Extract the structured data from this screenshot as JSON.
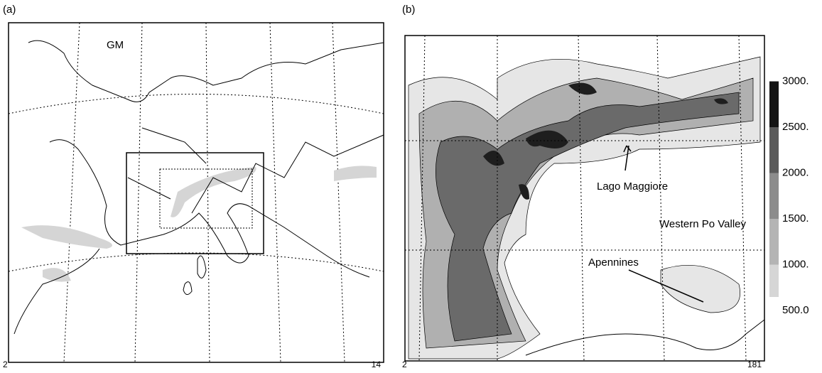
{
  "panels": [
    {
      "label": "(a)",
      "annotation": "GM",
      "x_start": "2",
      "x_end": "14"
    },
    {
      "label": "(b)",
      "x_start": "2",
      "x_end": "181",
      "annotations": [
        "Lago Maggiore",
        "Western Po Valley",
        "Apennines"
      ]
    }
  ],
  "colorbar": {
    "ticks": [
      {
        "value": 3000,
        "label": "3000."
      },
      {
        "value": 2500,
        "label": "2500."
      },
      {
        "value": 2000,
        "label": "2000."
      },
      {
        "value": 1500,
        "label": "1500."
      },
      {
        "value": 1000,
        "label": "1000."
      },
      {
        "value": 500,
        "label": "500.0"
      }
    ],
    "colors": [
      "#eeeeee",
      "#d6d6d6",
      "#b4b4b4",
      "#8c8c8c",
      "#5a5a5a",
      "#141414"
    ]
  }
}
